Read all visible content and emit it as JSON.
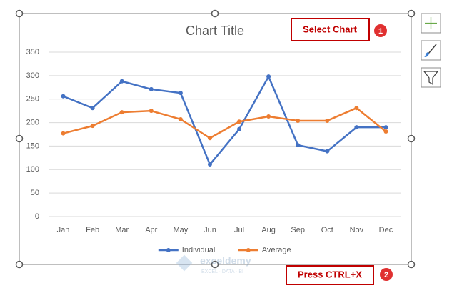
{
  "chart_data": {
    "type": "line",
    "title": "Chart Title",
    "categories": [
      "Jan",
      "Feb",
      "Mar",
      "Apr",
      "May",
      "Jun",
      "Jul",
      "Aug",
      "Sep",
      "Oct",
      "Nov",
      "Dec"
    ],
    "series": [
      {
        "name": "Individual",
        "color": "#4472c4",
        "values": [
          256,
          231,
          288,
          271,
          263,
          111,
          186,
          298,
          152,
          139,
          190,
          190
        ]
      },
      {
        "name": "Average",
        "color": "#ed7d31",
        "values": [
          177,
          193,
          222,
          225,
          207,
          167,
          202,
          213,
          204,
          204,
          231,
          181
        ]
      }
    ],
    "ylim": [
      0,
      350
    ],
    "yticks": [
      0,
      50,
      100,
      150,
      200,
      250,
      300,
      350
    ],
    "grid": true,
    "legend": "bottom"
  },
  "annotations": [
    {
      "text": "Select Chart",
      "step": "1"
    },
    {
      "text": "Press CTRL+X",
      "step": "2"
    }
  ],
  "watermark": {
    "brand": "exceldemy",
    "tagline": "EXCEL · DATA · BI"
  }
}
